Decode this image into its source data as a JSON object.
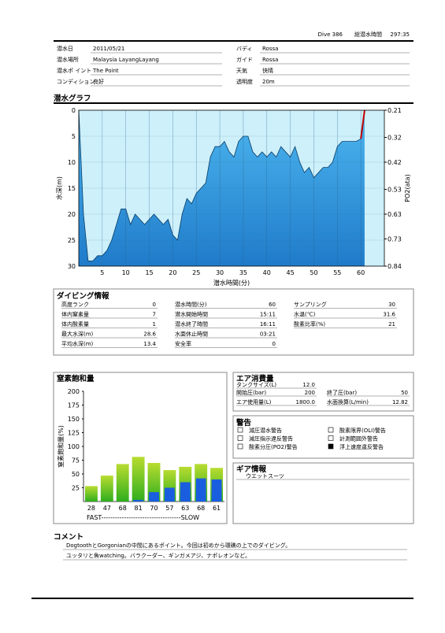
{
  "header": {
    "dive": "Dive 386",
    "total_time_label": "総潜水時間",
    "total_time": "297:35"
  },
  "info": [
    [
      "潜水日",
      "2011/05/21",
      "バディ",
      "Rossa"
    ],
    [
      "潜水場所",
      "Malaysia LayangLayang",
      "ガイド",
      "Rossa"
    ],
    [
      "潜水ポ イント",
      "The Point",
      "天気",
      "快晴"
    ],
    [
      "コンディション",
      "良好",
      "透明度",
      "20m"
    ]
  ],
  "graph": {
    "title": "潜水グラフ",
    "type": "area",
    "x_label": "潜水時間(分)",
    "y_label": "水深(m)",
    "y2_label": "PO2(ata)",
    "x": [
      0,
      1,
      2,
      3,
      4,
      5,
      6,
      7,
      8,
      9,
      10,
      11,
      12,
      13,
      14,
      15,
      16,
      17,
      18,
      19,
      20,
      21,
      22,
      23,
      24,
      25,
      26,
      27,
      28,
      29,
      30,
      31,
      32,
      33,
      34,
      35,
      36,
      37,
      38,
      39,
      40,
      41,
      42,
      43,
      44,
      45,
      46,
      47,
      48,
      49,
      50,
      51,
      52,
      53,
      54,
      55,
      56,
      57,
      58,
      59,
      60,
      60.8
    ],
    "depth": [
      0,
      20,
      29,
      29,
      28,
      28,
      27,
      25,
      22,
      19,
      19,
      22,
      20,
      21,
      22,
      21,
      20,
      21,
      22,
      21,
      24,
      25,
      20,
      17,
      18,
      16,
      15,
      14,
      9,
      7,
      7,
      6,
      8,
      9,
      6,
      5,
      5,
      8,
      9,
      8,
      9,
      8,
      9,
      7,
      8,
      9,
      7,
      10,
      12,
      11,
      13,
      12,
      11,
      11,
      10,
      7,
      6,
      6,
      6,
      6,
      5.5,
      0
    ],
    "xlim": [
      0,
      65
    ],
    "ylim": [
      30,
      0
    ],
    "y2lim": [
      0.84,
      0.21
    ],
    "xticks": [
      5,
      10,
      15,
      20,
      25,
      30,
      35,
      40,
      45,
      50,
      55,
      60
    ],
    "yticks": [
      0,
      5,
      10,
      15,
      20,
      25,
      30
    ],
    "y2ticks": [
      0.21,
      0.32,
      0.42,
      0.53,
      0.63,
      0.73,
      0.84
    ],
    "grid": true,
    "color": "#1c8fd8",
    "background": "#cdf0fb",
    "alert_color": "#c00000"
  },
  "dive_info": {
    "title": "ダイビング情報",
    "columns": [
      [
        [
          "高度ランク",
          "0"
        ],
        [
          "体内窒素量",
          "7"
        ],
        [
          "体内酸素量",
          "1"
        ],
        [
          "最大水深(m)",
          "28.6"
        ],
        [
          "平均水深(m)",
          "13.4"
        ]
      ],
      [
        [
          "潜水時間(分)",
          "60"
        ],
        [
          "潜水開始時間",
          "15:11"
        ],
        [
          "潜水終了時間",
          "16:11"
        ],
        [
          "水面休止時間",
          "03:21"
        ],
        [
          "安全率",
          "0"
        ]
      ],
      [
        [
          "サンプリング",
          "30"
        ],
        [
          "水温(℃)",
          "31.6"
        ],
        [
          "酸素比率(%)",
          "21"
        ]
      ]
    ]
  },
  "nitrogen": {
    "title": "窒素飽和量",
    "type": "bar",
    "y_label": "窒素飽和量(%)",
    "x_label": "FAST-----------------------------------SLOW",
    "ylim": [
      0,
      200
    ],
    "yticks": [
      25,
      50,
      75,
      100,
      125,
      150,
      175,
      200
    ],
    "series": [
      {
        "color": "#7cc520",
        "values": [
          28,
          47,
          68,
          81,
          70,
          57,
          63,
          68,
          61
        ]
      },
      {
        "color": "#1a5ee0",
        "values": [
          0,
          0,
          0,
          3,
          17,
          25,
          35,
          42,
          40
        ]
      }
    ]
  },
  "air": {
    "title": "エア消費量",
    "items": [
      [
        "タンクサイズ(L)",
        "12.0"
      ],
      [
        "開始圧(bar)",
        "200"
      ],
      [
        "終了圧(bar)",
        "50"
      ],
      [
        "エア使用量(L)",
        "1800.0"
      ],
      [
        "水面換算(L/min)",
        "12.82"
      ]
    ]
  },
  "warnings": {
    "title": "警告",
    "items": [
      {
        "label": "減圧潜水警告",
        "checked": false
      },
      {
        "label": "酸素限界(OLI)警告",
        "checked": false
      },
      {
        "label": "減圧指示違反警告",
        "checked": false
      },
      {
        "label": "計測範囲外警告",
        "checked": false
      },
      {
        "label": "酸素分圧(PO2)警告",
        "checked": false
      },
      {
        "label": "浮上速度違反警告",
        "checked": true
      }
    ]
  },
  "gear": {
    "title": "ギア情報",
    "items": [
      "ウエットスーツ"
    ]
  },
  "comment": {
    "title": "コメント",
    "lines": [
      "DogtoothとGorgonianの中間にあるポイント。今回は初めから環礁の上でのダイビング。",
      "ユッタリと魚watching。バラクーダー、ギンガメアジ、ナポレオンなど。"
    ]
  }
}
